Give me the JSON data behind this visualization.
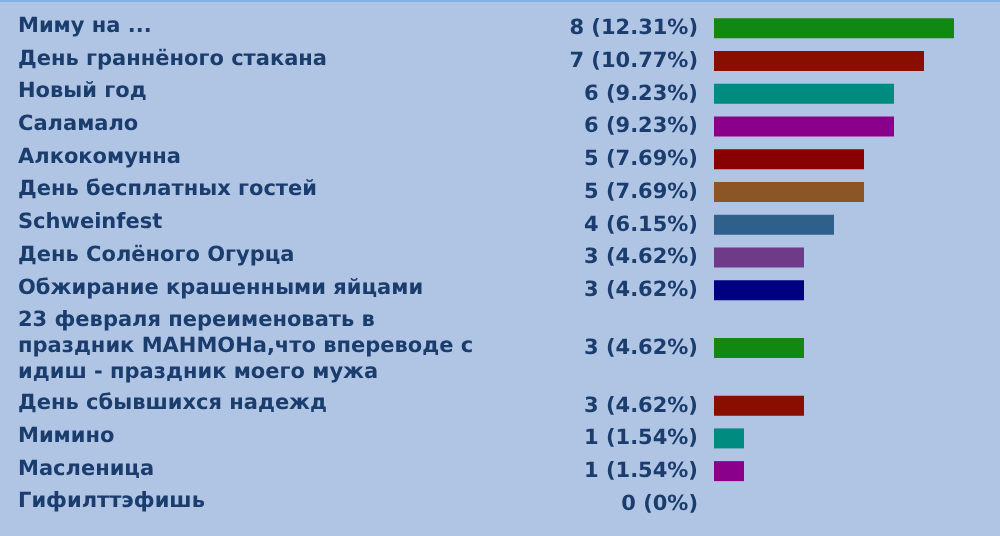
{
  "chart_data": {
    "type": "bar",
    "orientation": "horizontal",
    "categories": [
      "Миму на ...",
      "День граннёного стакана",
      "Новый год",
      "Саламало",
      "Алкокомунна",
      "День бесплатных гостей",
      "Schweinfest",
      "День Солёного Огурца",
      "Обжирание крашенными яйцами",
      "23 февраля переименовать в праздник МАНМОНа,что впереводе с идиш - праздник моего мужа",
      "День сбывшихся надежд",
      "Мимино",
      "Масленица",
      "Гифилттэфишь"
    ],
    "values": [
      8,
      7,
      6,
      6,
      5,
      5,
      4,
      3,
      3,
      3,
      3,
      1,
      1,
      0
    ],
    "value_labels": [
      "8 (12.31%)",
      "7 (10.77%)",
      "6 (9.23%)",
      "6 (9.23%)",
      "5 (7.69%)",
      "5 (7.69%)",
      "4 (6.15%)",
      "3 (4.62%)",
      "3 (4.62%)",
      "3 (4.62%)",
      "3 (4.62%)",
      "1 (1.54%)",
      "1 (1.54%)",
      "0 (0%)"
    ],
    "colors": [
      "#118811",
      "#880e00",
      "#008b80",
      "#8b008b",
      "#880000",
      "#8b5526",
      "#2f5f8b",
      "#6f3a88",
      "#000080",
      "#118811",
      "#880e00",
      "#008b80",
      "#8b008b",
      null
    ]
  }
}
